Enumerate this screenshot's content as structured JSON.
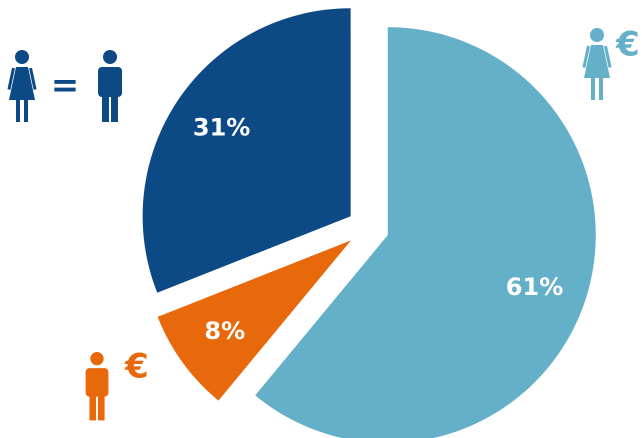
{
  "chart_data": {
    "type": "pie",
    "values": [
      61,
      8,
      31
    ],
    "value_labels": [
      "61%",
      "8%",
      "31%"
    ],
    "colors": [
      "#65b0c9",
      "#e8690b",
      "#0d4a85"
    ],
    "annotations": [
      "=",
      "€",
      "€"
    ]
  }
}
